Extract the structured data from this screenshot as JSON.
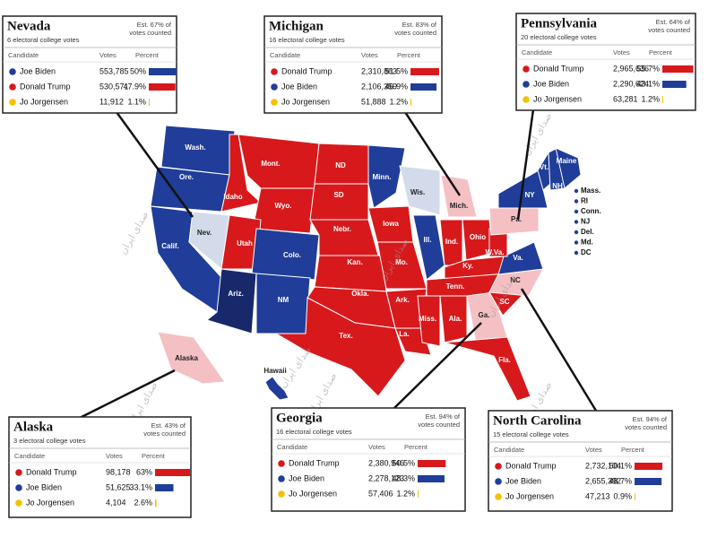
{
  "watermark": "صدای ایران",
  "states": [
    {
      "label": "Wash.",
      "color": "#1f3d99"
    },
    {
      "label": "Ore.",
      "color": "#1f3d99"
    },
    {
      "label": "Calif.",
      "color": "#1f3d99"
    },
    {
      "label": "Nev.",
      "color": "#d3dbea"
    },
    {
      "label": "Idaho",
      "color": "#d7191c"
    },
    {
      "label": "Mont.",
      "color": "#d7191c"
    },
    {
      "label": "Wyo.",
      "color": "#d7191c"
    },
    {
      "label": "Utah",
      "color": "#d7191c"
    },
    {
      "label": "Colo.",
      "color": "#1f3d99"
    },
    {
      "label": "Ariz.",
      "color": "#17296a"
    },
    {
      "label": "NM",
      "color": "#1f3d99"
    },
    {
      "label": "ND",
      "color": "#d7191c"
    },
    {
      "label": "SD",
      "color": "#d7191c"
    },
    {
      "label": "Nebr.",
      "color": "#d7191c"
    },
    {
      "label": "Kan.",
      "color": "#d7191c"
    },
    {
      "label": "Okla.",
      "color": "#d7191c"
    },
    {
      "label": "Tex.",
      "color": "#d7191c"
    },
    {
      "label": "Minn.",
      "color": "#1f3d99"
    },
    {
      "label": "Iowa",
      "color": "#d7191c"
    },
    {
      "label": "Mo.",
      "color": "#d7191c"
    },
    {
      "label": "Ark.",
      "color": "#d7191c"
    },
    {
      "label": "La.",
      "color": "#d7191c"
    },
    {
      "label": "Wis.",
      "color": "#d3dbea"
    },
    {
      "label": "Ill.",
      "color": "#1f3d99"
    },
    {
      "label": "Mich.",
      "color": "#f4c0c4"
    },
    {
      "label": "Ind.",
      "color": "#d7191c"
    },
    {
      "label": "Ohio",
      "color": "#d7191c"
    },
    {
      "label": "Ky.",
      "color": "#d7191c"
    },
    {
      "label": "Tenn.",
      "color": "#d7191c"
    },
    {
      "label": "Miss.",
      "color": "#d7191c"
    },
    {
      "label": "Ala.",
      "color": "#d7191c"
    },
    {
      "label": "Ga.",
      "color": "#f4c0c4"
    },
    {
      "label": "Fla.",
      "color": "#d7191c"
    },
    {
      "label": "SC",
      "color": "#d7191c"
    },
    {
      "label": "NC",
      "color": "#f4c0c4"
    },
    {
      "label": "Va.",
      "color": "#1f3d99"
    },
    {
      "label": "W.Va.",
      "color": "#d7191c"
    },
    {
      "label": "Pa.",
      "color": "#f4c0c4"
    },
    {
      "label": "NY",
      "color": "#1f3d99"
    },
    {
      "label": "Vt.",
      "color": "#1f3d99"
    },
    {
      "label": "NH",
      "color": "#1f3d99"
    },
    {
      "label": "Maine",
      "color": "#1f3d99"
    },
    {
      "label": "Alaska",
      "color": "#f4c0c4"
    },
    {
      "label": "Hawaii",
      "color": "#1f3d99"
    }
  ],
  "small_states": [
    "Mass.",
    "RI",
    "Conn.",
    "NJ",
    "Del.",
    "Md.",
    "DC"
  ],
  "columns": [
    "Candidate",
    "Votes",
    "Percent"
  ],
  "boxes": [
    {
      "state": "Nevada",
      "electoral": "6 electoral college votes",
      "counted": [
        "Est. 67% of",
        "votes counted"
      ],
      "rows": [
        {
          "candidate": "Joe Biden",
          "color": "#1f3d99",
          "votes": "553,785",
          "percent": {
            "value": 50,
            "label": "50%"
          }
        },
        {
          "candidate": "Donald Trump",
          "color": "#d7191c",
          "votes": "530,571",
          "percent": {
            "value": 47.9,
            "label": "47.9%"
          }
        },
        {
          "candidate": "Jo Jorgensen",
          "color": "#f2c200",
          "votes": "11,912",
          "percent": {
            "value": 1.1,
            "label": "1.1%"
          }
        }
      ]
    },
    {
      "state": "Michigan",
      "electoral": "16 electoral college votes",
      "counted": [
        "Est. 83% of",
        "votes counted"
      ],
      "rows": [
        {
          "candidate": "Donald Trump",
          "color": "#d7191c",
          "votes": "2,310,863",
          "percent": {
            "value": 51.5,
            "label": "51.5%"
          }
        },
        {
          "candidate": "Joe Biden",
          "color": "#1f3d99",
          "votes": "2,106,359",
          "percent": {
            "value": 46.9,
            "label": "46.9%"
          }
        },
        {
          "candidate": "Jo Jorgensen",
          "color": "#f2c200",
          "votes": "51,888",
          "percent": {
            "value": 1.2,
            "label": "1.2%"
          }
        }
      ]
    },
    {
      "state": "Pennsylvania",
      "electoral": "20 electoral college votes",
      "counted": [
        "Est. 64% of",
        "votes counted"
      ],
      "rows": [
        {
          "candidate": "Donald Trump",
          "color": "#d7191c",
          "votes": "2,965,636",
          "percent": {
            "value": 55.7,
            "label": "55.7%"
          }
        },
        {
          "candidate": "Joe Biden",
          "color": "#1f3d99",
          "votes": "2,290,624",
          "percent": {
            "value": 43.1,
            "label": "43.1%"
          }
        },
        {
          "candidate": "Jo Jorgensen",
          "color": "#f2c200",
          "votes": "63,281",
          "percent": {
            "value": 1.2,
            "label": "1.2%"
          }
        }
      ]
    },
    {
      "state": "Alaska",
      "electoral": "3 electoral college votes",
      "counted": [
        "Est. 43% of",
        "votes counted"
      ],
      "rows": [
        {
          "candidate": "Donald Trump",
          "color": "#d7191c",
          "votes": "98,178",
          "percent": {
            "value": 63,
            "label": "63%"
          }
        },
        {
          "candidate": "Joe Biden",
          "color": "#1f3d99",
          "votes": "51,625",
          "percent": {
            "value": 33.1,
            "label": "33.1%"
          }
        },
        {
          "candidate": "Jo Jorgensen",
          "color": "#f2c200",
          "votes": "4,104",
          "percent": {
            "value": 2.6,
            "label": "2.6%"
          }
        }
      ]
    },
    {
      "state": "Georgia",
      "electoral": "16 electoral college votes",
      "counted": [
        "Est. 94% of",
        "votes counted"
      ],
      "rows": [
        {
          "candidate": "Donald Trump",
          "color": "#d7191c",
          "votes": "2,380,946",
          "percent": {
            "value": 50.5,
            "label": "50.5%"
          }
        },
        {
          "candidate": "Joe Biden",
          "color": "#1f3d99",
          "votes": "2,278,123",
          "percent": {
            "value": 48.3,
            "label": "48.3%"
          }
        },
        {
          "candidate": "Jo Jorgensen",
          "color": "#f2c200",
          "votes": "57,406",
          "percent": {
            "value": 1.2,
            "label": "1.2%"
          }
        }
      ]
    },
    {
      "state": "North Carolina",
      "electoral": "15 electoral college votes",
      "counted": [
        "Est. 94% of",
        "votes counted"
      ],
      "rows": [
        {
          "candidate": "Donald Trump",
          "color": "#d7191c",
          "votes": "2,732,104",
          "percent": {
            "value": 50.1,
            "label": "50.1%"
          }
        },
        {
          "candidate": "Joe Biden",
          "color": "#1f3d99",
          "votes": "2,655,392",
          "percent": {
            "value": 48.7,
            "label": "48.7%"
          }
        },
        {
          "candidate": "Jo Jorgensen",
          "color": "#f2c200",
          "votes": "47,213",
          "percent": {
            "value": 0.9,
            "label": "0.9%"
          }
        }
      ]
    }
  ]
}
